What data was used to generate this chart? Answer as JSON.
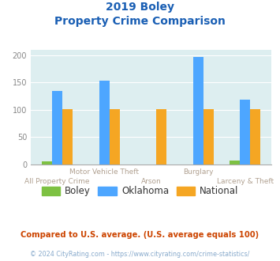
{
  "title_line1": "2019 Boley",
  "title_line2": "Property Crime Comparison",
  "categories": [
    "All Property Crime",
    "Motor Vehicle Theft",
    "Arson",
    "Burglary",
    "Larceny & Theft"
  ],
  "boley": [
    5,
    0,
    0,
    0,
    7
  ],
  "oklahoma": [
    135,
    153,
    0,
    197,
    118
  ],
  "national": [
    101,
    101,
    101,
    101,
    101
  ],
  "boley_color": "#7dc142",
  "oklahoma_color": "#4da6ff",
  "national_color": "#f5a623",
  "bg_color": "#ddeef0",
  "title_color": "#1a5fb4",
  "xlabel_color": "#b0a090",
  "ylim": [
    0,
    210
  ],
  "yticks": [
    0,
    50,
    100,
    150,
    200
  ],
  "footnote1": "Compared to U.S. average. (U.S. average equals 100)",
  "footnote2": "© 2024 CityRating.com - https://www.cityrating.com/crime-statistics/",
  "footnote1_color": "#cc4400",
  "footnote2_color": "#88aacc",
  "legend_labels": [
    "Boley",
    "Oklahoma",
    "National"
  ]
}
